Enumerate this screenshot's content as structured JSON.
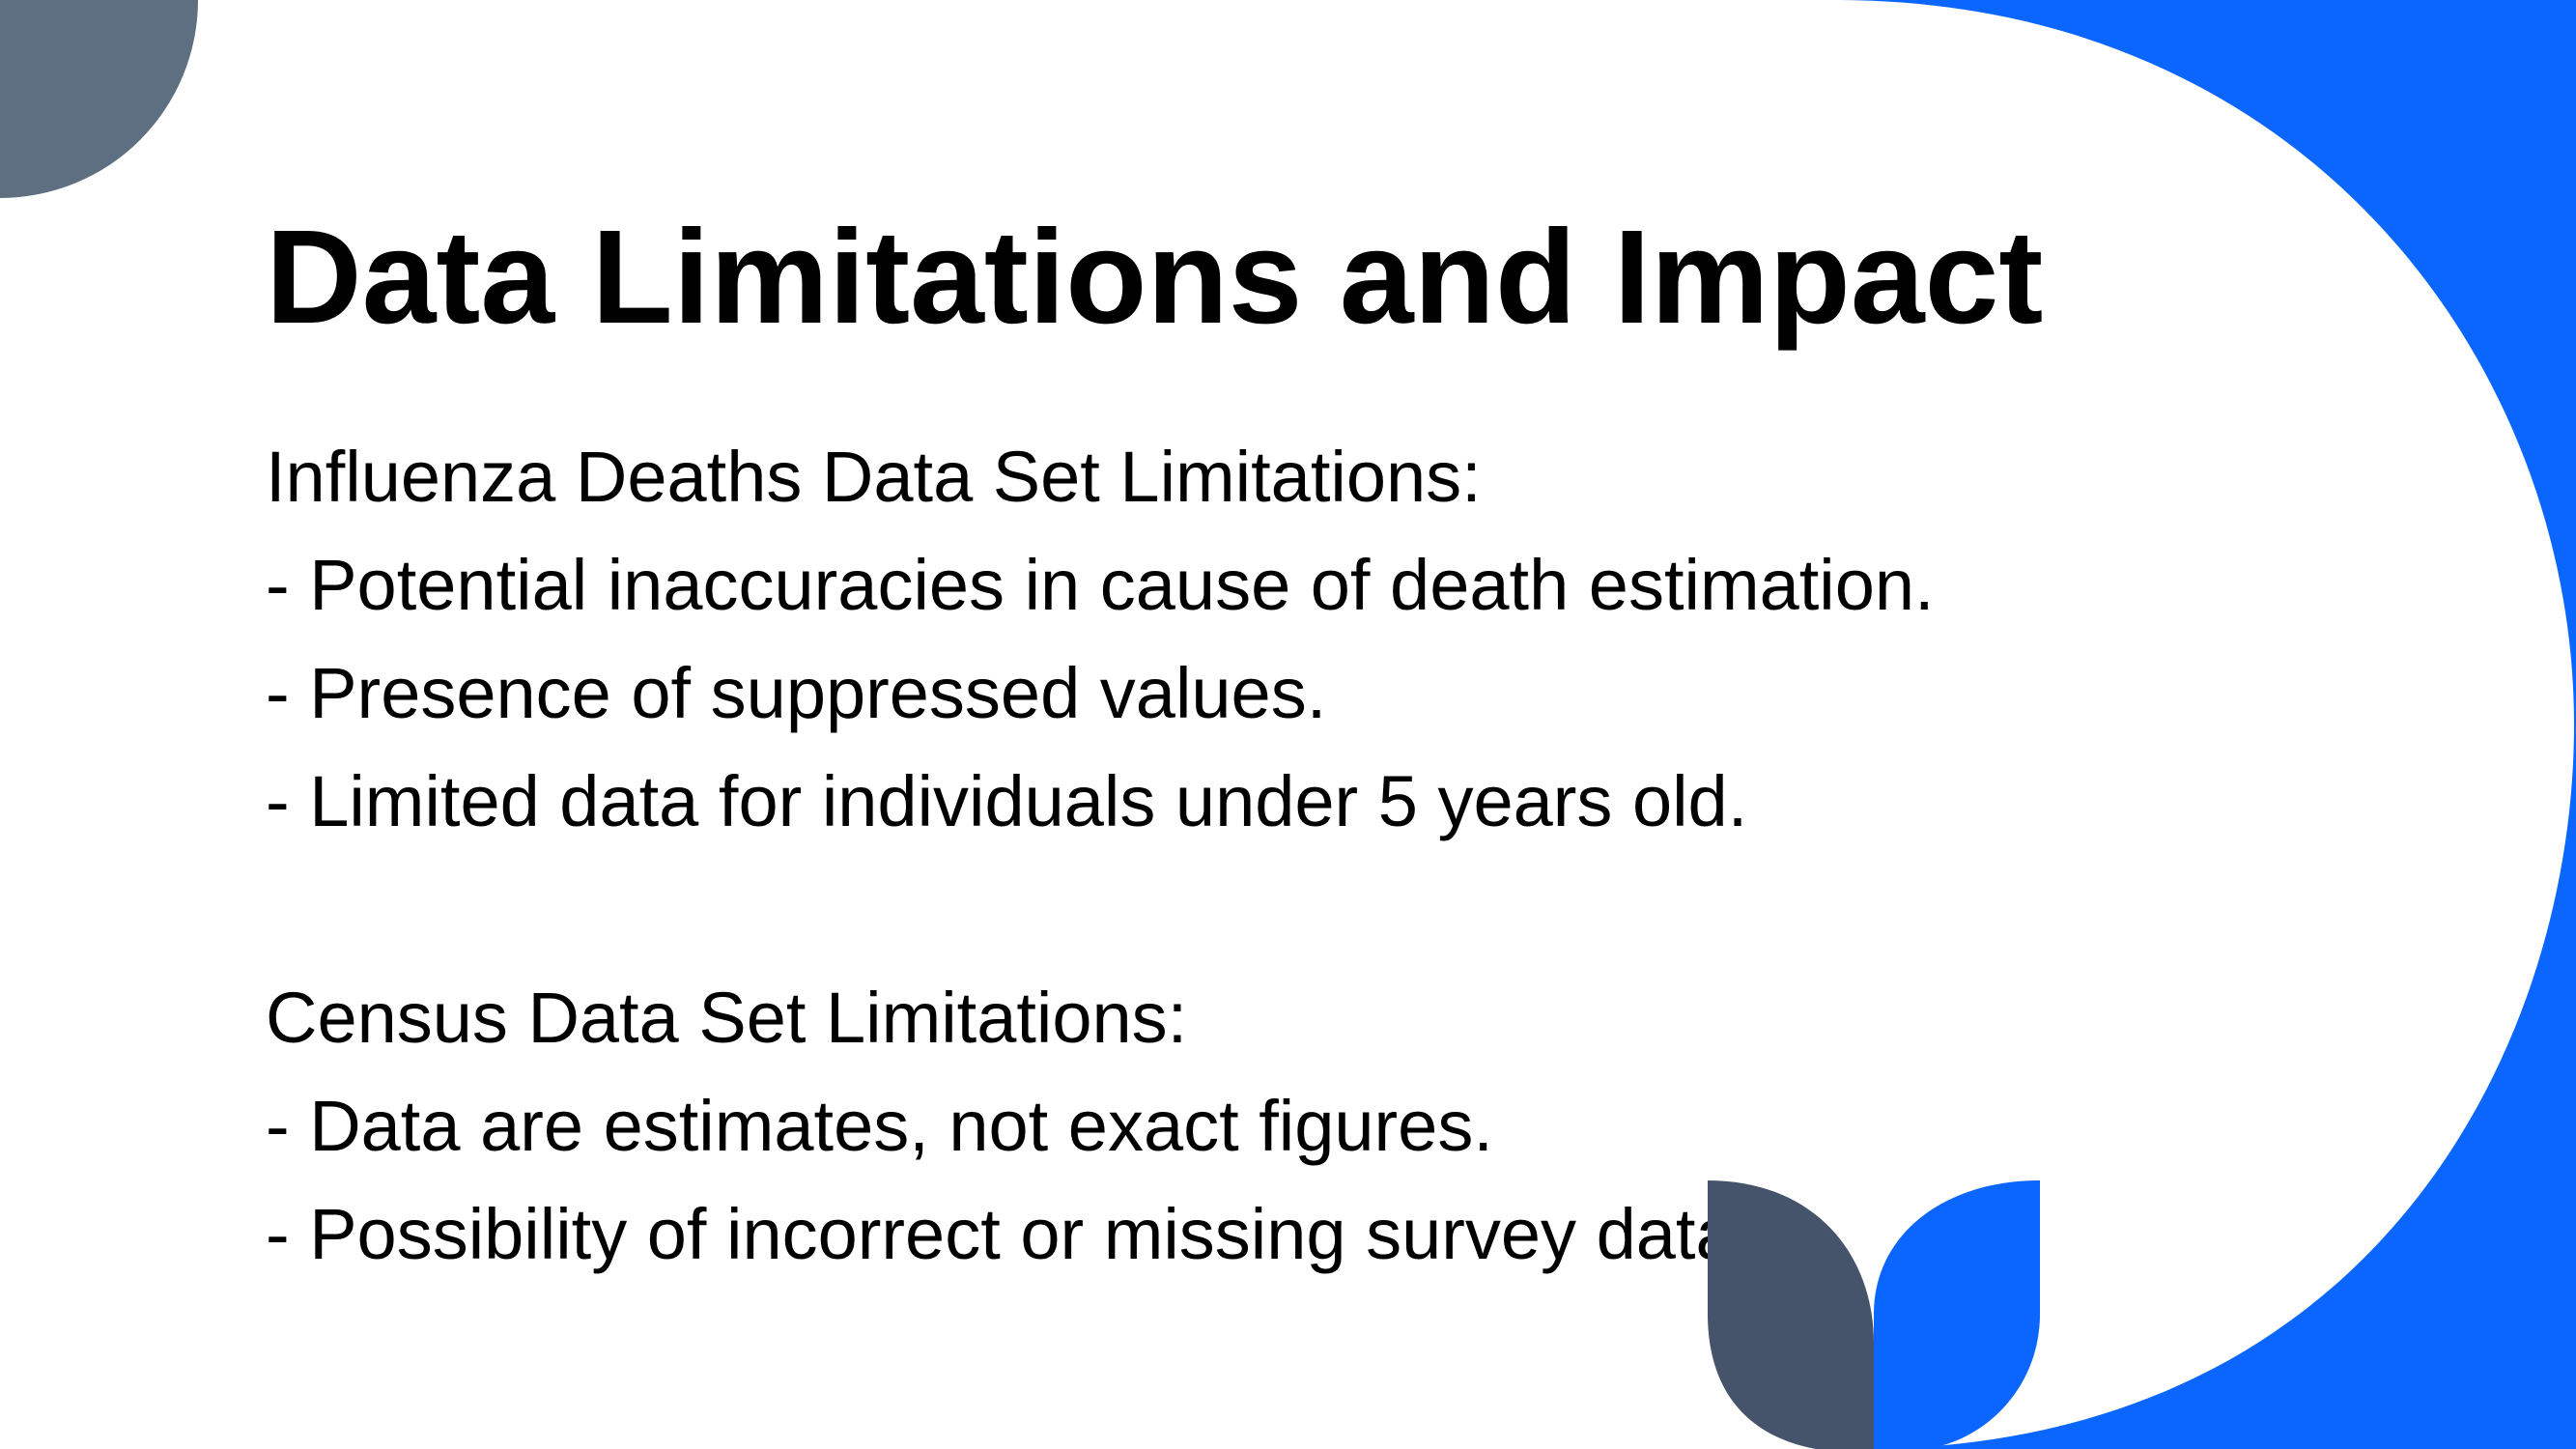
{
  "slide": {
    "title": "Data Limitations and Impact",
    "lines": [
      "Influenza Deaths Data Set Limitations:",
      "- Potential inaccuracies in cause of death estimation.",
      "- Presence of suppressed values.",
      "- Limited data for individuals under 5 years old.",
      "",
      "Census Data Set Limitations:",
      "- Data are estimates, not exact figures.",
      "- Possibility of incorrect or missing survey data."
    ]
  },
  "colors": {
    "accent_blue": "#0a66ff",
    "slate_gray": "#5f6f82",
    "dark_slate": "#46546b",
    "text": "#000000",
    "background": "#ffffff"
  }
}
